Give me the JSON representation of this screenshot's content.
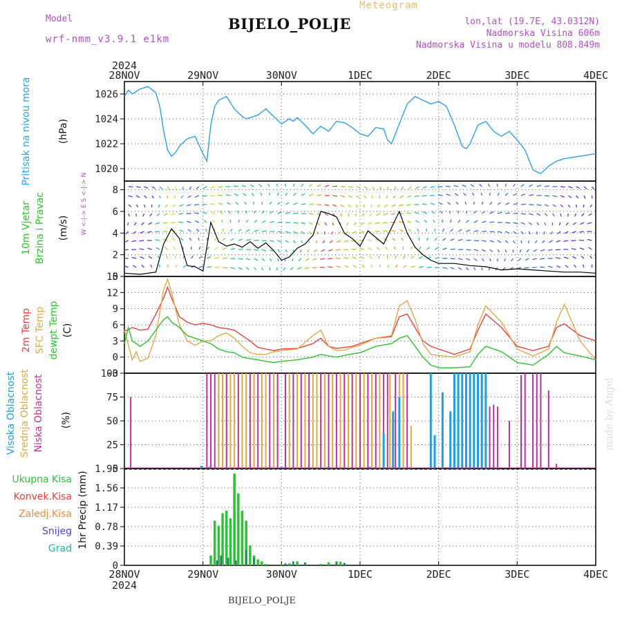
{
  "header": {
    "model_label": "Model",
    "model_name": "wrf-nmm_v3.9.1 e1km",
    "station": "BIJELO_POLJE",
    "product": "Meteogram",
    "lonlat": "lon,lat (19.7E, 43.0312N)",
    "elev": "Nadmorska Visina 606m",
    "elev_model": "Nadmorska Visina u modelu 808.849m",
    "year_top": "2024",
    "year_bottom": "2024",
    "footer_station": "BIJELO_POLJE",
    "made_by": "made by Angel"
  },
  "colors": {
    "pressure": "#2aa1e6",
    "temp2m": "#e8403f",
    "sfc": "#e3a84a",
    "dewpt": "#29c42c",
    "cloud_high": "#1f9ee0",
    "cloud_mid": "#e0a840",
    "cloud_low": "#c0309a",
    "rain_total": "#2ec23a",
    "rain_conv": "#e8403f",
    "rain_frozen": "#f08a3a",
    "snow": "#4848d8",
    "graupel": "#22b3a0",
    "purple_text": "#b14fc5"
  },
  "chart_data": [
    {
      "type": "line",
      "panel": "pressure",
      "ylabel_main": "Pritisak na nivou mora",
      "ylabel_unit": "(hPa)",
      "xticks": [
        "28NOV",
        "29NOV",
        "30NOV",
        "1DEC",
        "2DEC",
        "3DEC",
        "4DEC"
      ],
      "ylim": [
        1019,
        1027
      ],
      "yticks": [
        1020,
        1022,
        1024,
        1026
      ],
      "series": [
        {
          "name": "",
          "x": [
            0,
            0.05,
            0.1,
            0.2,
            0.3,
            0.4,
            0.45,
            0.5,
            0.55,
            0.6,
            0.65,
            0.7,
            0.8,
            0.9,
            1.0,
            1.05,
            1.1,
            1.15,
            1.2,
            1.3,
            1.4,
            1.5,
            1.55,
            1.6,
            1.7,
            1.8,
            1.9,
            2.0,
            2.1,
            2.15,
            2.2,
            2.3,
            2.4,
            2.5,
            2.6,
            2.7,
            2.8,
            2.9,
            3.0,
            3.1,
            3.2,
            3.3,
            3.35,
            3.4,
            3.5,
            3.6,
            3.7,
            3.8,
            3.9,
            4.0,
            4.1,
            4.2,
            4.3,
            4.35,
            4.4,
            4.5,
            4.6,
            4.7,
            4.8,
            4.9,
            5.0,
            5.1,
            5.2,
            5.3,
            5.4,
            5.5,
            5.6,
            5.7,
            5.8,
            5.9,
            6.0
          ],
          "y": [
            1025.8,
            1026.3,
            1026.0,
            1026.4,
            1026.6,
            1026.1,
            1025,
            1023,
            1021.5,
            1021,
            1021.3,
            1021.8,
            1022.4,
            1022.6,
            1021.2,
            1020.6,
            1023.5,
            1025,
            1025.5,
            1025.8,
            1024.8,
            1024.2,
            1024,
            1024.1,
            1024.3,
            1024.8,
            1024.2,
            1023.6,
            1024.0,
            1023.8,
            1024.1,
            1023.5,
            1022.8,
            1023.4,
            1023.0,
            1023.8,
            1023.7,
            1023.3,
            1022.8,
            1022.6,
            1023.3,
            1023.2,
            1022.3,
            1022.0,
            1023.6,
            1025.2,
            1025.8,
            1025.5,
            1025.2,
            1025.4,
            1025.0,
            1023.5,
            1021.8,
            1021.6,
            1022.0,
            1023.5,
            1023.8,
            1023.0,
            1022.6,
            1023.0,
            1022.3,
            1021.5,
            1019.9,
            1019.6,
            1020.2,
            1020.6,
            1020.8,
            1020.9,
            1021.0,
            1021.1,
            1021.2
          ]
        }
      ]
    },
    {
      "type": "line",
      "panel": "wind",
      "ylabel_main": "10m Vjetar",
      "ylabel_sub": "Brzina i Pravac",
      "ylabel_unit": "(m/s)",
      "compass": "W <-|-> E   S <-|-> N",
      "ylim": [
        0,
        8.8
      ],
      "yticks": [
        0,
        2,
        4,
        6,
        8
      ],
      "series": [
        {
          "name": "",
          "x": [
            0,
            0.2,
            0.4,
            0.5,
            0.6,
            0.7,
            0.8,
            0.9,
            1.0,
            1.1,
            1.2,
            1.3,
            1.4,
            1.5,
            1.6,
            1.7,
            1.8,
            1.9,
            2.0,
            2.1,
            2.2,
            2.3,
            2.4,
            2.5,
            2.6,
            2.7,
            2.8,
            2.9,
            3.0,
            3.1,
            3.2,
            3.3,
            3.4,
            3.5,
            3.6,
            3.7,
            3.8,
            3.9,
            4.0,
            4.2,
            4.4,
            4.6,
            4.8,
            5.0,
            5.2,
            5.4,
            5.6,
            5.8,
            6.0
          ],
          "y": [
            0.3,
            0.2,
            0.4,
            3.0,
            4.4,
            3.5,
            1.0,
            0.9,
            0.5,
            5.0,
            3.2,
            2.8,
            3.0,
            2.7,
            3.2,
            2.6,
            3.1,
            2.4,
            1.5,
            1.8,
            2.6,
            3.0,
            3.8,
            6.0,
            5.8,
            5.5,
            4.0,
            3.5,
            2.8,
            4.2,
            3.6,
            3.0,
            4.5,
            6.0,
            4.0,
            2.7,
            2.0,
            1.5,
            1.2,
            1.2,
            1.0,
            0.9,
            0.6,
            0.7,
            0.6,
            0.5,
            0.4,
            0.4,
            0.3
          ]
        }
      ]
    },
    {
      "type": "line",
      "panel": "temperature",
      "ylabel_main": "2m Temp",
      "ylabel_sub": "SFC Temp",
      "ylabel_sub2": "dewpt Temp",
      "ylabel_unit": "(C)",
      "ylim": [
        -3,
        15
      ],
      "yticks": [
        -3,
        0,
        3,
        6,
        9,
        12,
        15
      ],
      "series": [
        {
          "name": "2m Temp",
          "x": [
            0,
            0.1,
            0.2,
            0.3,
            0.4,
            0.5,
            0.55,
            0.6,
            0.7,
            0.8,
            0.9,
            1.0,
            1.1,
            1.2,
            1.3,
            1.4,
            1.5,
            1.6,
            1.7,
            1.8,
            1.9,
            2.0,
            2.2,
            2.4,
            2.5,
            2.6,
            2.7,
            2.8,
            2.9,
            3.0,
            3.2,
            3.4,
            3.5,
            3.6,
            3.7,
            3.8,
            3.9,
            4.0,
            4.2,
            4.4,
            4.5,
            4.6,
            4.8,
            5.0,
            5.2,
            5.4,
            5.5,
            5.6,
            5.8,
            6.0
          ],
          "y": [
            4.8,
            5.5,
            5.0,
            5.2,
            8.0,
            11.0,
            13.0,
            11.0,
            7.5,
            6.5,
            6.0,
            6.3,
            6.0,
            5.5,
            5.3,
            5.0,
            4.0,
            3.0,
            1.8,
            1.5,
            1.2,
            1.5,
            1.6,
            2.5,
            3.5,
            2.0,
            1.6,
            1.8,
            2.0,
            2.5,
            3.5,
            3.8,
            7.5,
            8.0,
            5.5,
            3.0,
            2.0,
            1.5,
            0.5,
            1.5,
            5.0,
            8.0,
            5.5,
            2.0,
            1.2,
            2.0,
            5.5,
            6.2,
            4.0,
            3.0
          ]
        },
        {
          "name": "SFC Temp",
          "x": [
            0,
            0.1,
            0.15,
            0.2,
            0.3,
            0.4,
            0.5,
            0.55,
            0.6,
            0.7,
            0.8,
            0.9,
            1.0,
            1.1,
            1.2,
            1.3,
            1.4,
            1.5,
            1.6,
            1.7,
            1.8,
            1.9,
            2.0,
            2.2,
            2.4,
            2.5,
            2.6,
            2.7,
            2.8,
            2.9,
            3.0,
            3.2,
            3.4,
            3.5,
            3.6,
            3.7,
            3.8,
            3.9,
            4.0,
            4.2,
            4.4,
            4.5,
            4.6,
            4.8,
            5.0,
            5.2,
            5.4,
            5.5,
            5.6,
            5.8,
            6.0
          ],
          "y": [
            5.0,
            -0.5,
            1.0,
            -0.8,
            -0.2,
            4.0,
            12.5,
            14.5,
            12.0,
            6.0,
            3.0,
            2.2,
            3.0,
            3.0,
            4.0,
            4.5,
            3.5,
            2.0,
            0.8,
            0.5,
            0.5,
            1.0,
            1.2,
            1.5,
            4.0,
            5.0,
            2.0,
            1.2,
            1.3,
            1.8,
            2.2,
            3.5,
            4.0,
            9.5,
            10.5,
            7.0,
            2.5,
            0.5,
            0.3,
            0.0,
            1.0,
            6.0,
            9.5,
            6.5,
            1.5,
            0.2,
            1.5,
            6.5,
            9.8,
            3.0,
            -0.5
          ]
        },
        {
          "name": "dewpt Temp",
          "x": [
            0,
            0.05,
            0.1,
            0.2,
            0.3,
            0.4,
            0.5,
            0.55,
            0.6,
            0.7,
            0.8,
            0.9,
            1.0,
            1.1,
            1.2,
            1.3,
            1.4,
            1.5,
            1.6,
            1.7,
            1.8,
            1.9,
            2.0,
            2.2,
            2.4,
            2.5,
            2.6,
            2.7,
            2.8,
            2.9,
            3.0,
            3.2,
            3.4,
            3.5,
            3.6,
            3.7,
            3.8,
            3.9,
            4.0,
            4.2,
            4.4,
            4.5,
            4.6,
            4.8,
            5.0,
            5.2,
            5.4,
            5.5,
            5.6,
            5.8,
            6.0
          ],
          "y": [
            2.5,
            5.5,
            3.0,
            2.0,
            3.0,
            5.0,
            7.0,
            7.5,
            6.5,
            5.5,
            4.0,
            3.5,
            3.0,
            2.5,
            1.5,
            1.0,
            0.8,
            0.0,
            -0.3,
            -0.5,
            -0.8,
            -1.0,
            -0.8,
            -0.5,
            0.0,
            0.5,
            0.2,
            0.0,
            0.3,
            0.6,
            0.8,
            2.0,
            2.5,
            3.5,
            4.0,
            2.0,
            0.0,
            -1.5,
            -2.0,
            -2.0,
            -1.8,
            0.5,
            2.0,
            1.0,
            -1.0,
            -1.5,
            0.5,
            2.0,
            0.8,
            0.2,
            -0.5
          ]
        }
      ]
    },
    {
      "type": "bar",
      "panel": "clouds",
      "ylabel_main": "Visoka Oblacnost",
      "ylabel_sub": "Srednja Oblacnost",
      "ylabel_sub2": "Niska Oblacnost",
      "ylabel_unit": "(%)",
      "ylim": [
        0,
        100
      ],
      "yticks": [
        0,
        25,
        50,
        75,
        100
      ],
      "series": [
        {
          "name": "Niska Oblacnost",
          "x": [
            0.08,
            1.05,
            1.1,
            1.15,
            1.3,
            1.45,
            1.6,
            1.7,
            1.85,
            1.95,
            2.05,
            2.15,
            2.25,
            2.35,
            2.5,
            2.6,
            2.7,
            2.8,
            2.9,
            3.0,
            3.1,
            3.2,
            3.3,
            3.35,
            3.45,
            3.55,
            3.6,
            4.4,
            4.55,
            4.65,
            4.7,
            4.75,
            4.9,
            5.05,
            5.1,
            5.2,
            5.25,
            5.3,
            5.4,
            5.5
          ],
          "y": [
            75,
            100,
            100,
            100,
            100,
            100,
            100,
            100,
            100,
            100,
            100,
            100,
            100,
            100,
            100,
            100,
            100,
            100,
            100,
            100,
            100,
            100,
            100,
            100,
            100,
            100,
            100,
            25,
            70,
            65,
            67,
            65,
            50,
            98,
            100,
            100,
            100,
            100,
            82,
            5
          ]
        },
        {
          "name": "Srednja Oblacnost",
          "x": [
            1.2,
            1.25,
            1.35,
            1.4,
            1.5,
            1.55,
            1.65,
            1.75,
            1.8,
            1.9,
            2.1,
            2.2,
            2.3,
            2.4,
            2.45,
            2.55,
            2.65,
            2.75,
            2.85,
            2.95,
            3.05,
            3.15,
            3.25,
            3.38,
            3.5,
            3.55,
            3.65
          ],
          "y": [
            100,
            100,
            100,
            100,
            100,
            100,
            100,
            100,
            100,
            100,
            100,
            100,
            100,
            100,
            100,
            100,
            100,
            100,
            100,
            100,
            100,
            100,
            100,
            100,
            100,
            100,
            45
          ]
        },
        {
          "name": "Visoka Oblacnost",
          "x": [
            0.98,
            1.08,
            2.0,
            2.6,
            3.12,
            3.3,
            3.42,
            3.5,
            3.9,
            3.95,
            4.05,
            4.15,
            4.2,
            4.25,
            4.3,
            4.35,
            4.4,
            4.45,
            4.5,
            4.55,
            4.6
          ],
          "y": [
            3,
            2,
            2,
            2,
            2,
            37,
            60,
            75,
            100,
            35,
            80,
            60,
            100,
            100,
            100,
            100,
            100,
            100,
            100,
            100,
            100
          ]
        }
      ]
    },
    {
      "type": "bar",
      "panel": "precip",
      "ylabel_main": "1hr Precip",
      "ylabel_unit": "(mm)",
      "legend": [
        "Ukupna Kisa",
        "Konvek.Kisa",
        "Zaledj.Kisa",
        "Snijeg",
        "Grad"
      ],
      "ylim": [
        0,
        1.95
      ],
      "yticks": [
        0,
        0.39,
        0.78,
        1.17,
        1.56,
        1.95
      ],
      "series": [
        {
          "name": "Ukupna Kisa",
          "x": [
            1.1,
            1.15,
            1.2,
            1.25,
            1.3,
            1.35,
            1.4,
            1.45,
            1.5,
            1.55,
            1.6,
            1.65,
            1.7,
            1.75,
            1.8,
            2.0,
            2.1,
            2.2,
            2.3,
            2.5,
            2.6,
            2.7,
            2.75,
            2.8
          ],
          "y": [
            0.2,
            0.9,
            0.8,
            1.05,
            1.1,
            0.95,
            1.85,
            1.45,
            1.1,
            0.9,
            0.4,
            0.2,
            0.12,
            0.08,
            0.03,
            0.02,
            0.04,
            0.08,
            0.05,
            0.03,
            0.06,
            0.08,
            0.07,
            0.04
          ]
        },
        {
          "name": "Snijeg",
          "x": [
            1.18,
            1.23,
            1.32,
            1.42,
            1.55,
            1.65,
            2.05,
            2.15,
            2.3,
            2.7,
            2.8
          ],
          "y": [
            0.1,
            0.2,
            0.15,
            0.1,
            0.3,
            0.15,
            0.04,
            0.08,
            0.06,
            0.06,
            0.05
          ]
        }
      ]
    }
  ]
}
